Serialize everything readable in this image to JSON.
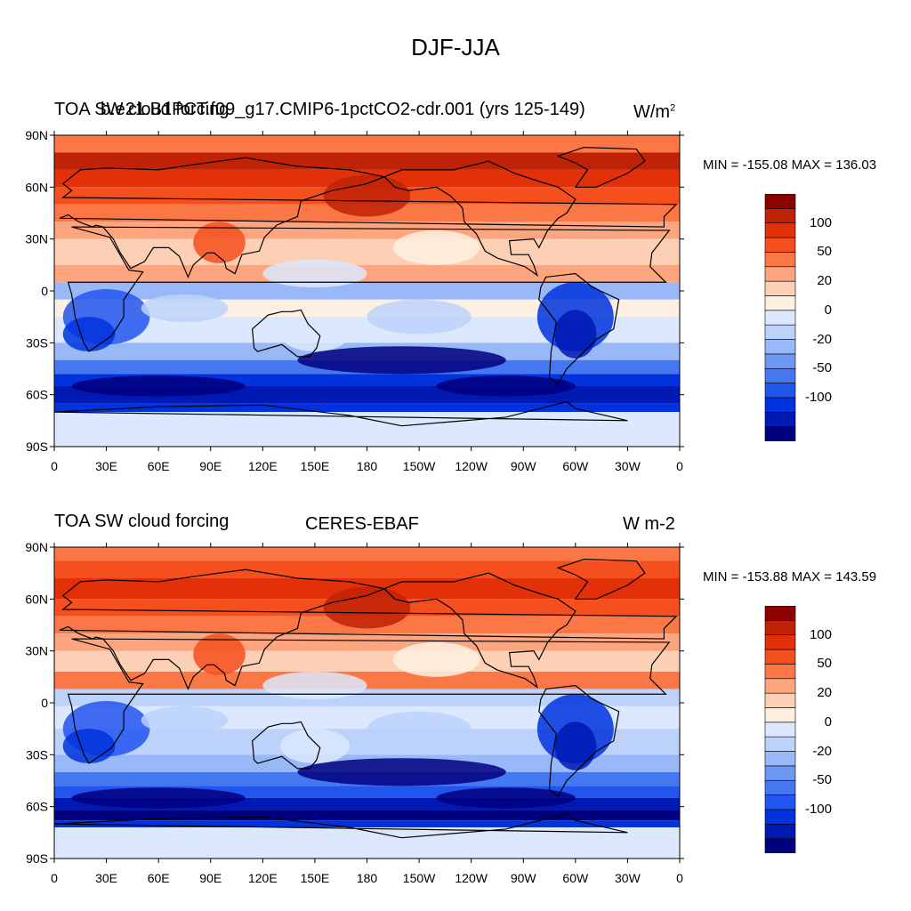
{
  "title": "DJF-JJA",
  "panels": [
    {
      "left_title": "TOA SW cloud forcing",
      "center_title": "b.e21.B1PCT.f09_g17.CMIP6-1pctCO2-cdr.001 (yrs 125-149)",
      "units_base": "W/m",
      "units_sup": "2",
      "minmax": "MIN = -155.08 MAX = 136.03"
    },
    {
      "left_title": "TOA SW cloud forcing",
      "center_title": "CERES-EBAF",
      "units_base": "W m-2",
      "units_sup": "",
      "minmax": "MIN = -153.88 MAX = 143.59"
    }
  ],
  "lat_labels": [
    "90N",
    "60N",
    "30N",
    "0",
    "30S",
    "60S",
    "90S"
  ],
  "lon_labels": [
    "0",
    "30E",
    "60E",
    "90E",
    "120E",
    "150E",
    "180",
    "150W",
    "120W",
    "90W",
    "60W",
    "30W",
    "0"
  ],
  "colorbar": {
    "colors": [
      "#00007f",
      "#0019b3",
      "#0033dd",
      "#2255ee",
      "#4477f0",
      "#6e97f4",
      "#98b8f8",
      "#bcd2fb",
      "#dbe8fd",
      "#fef0e0",
      "#fdd0b5",
      "#fca57e",
      "#fb7846",
      "#f44f1c",
      "#e23009",
      "#bf2206",
      "#8c0000"
    ],
    "labels": [
      {
        "text": "100",
        "value": 100
      },
      {
        "text": "50",
        "value": 50
      },
      {
        "text": "20",
        "value": 20
      },
      {
        "text": "0",
        "value": 0
      },
      {
        "text": "-20",
        "value": -20
      },
      {
        "text": "-50",
        "value": -50
      },
      {
        "text": "-100",
        "value": -100
      }
    ]
  }
}
